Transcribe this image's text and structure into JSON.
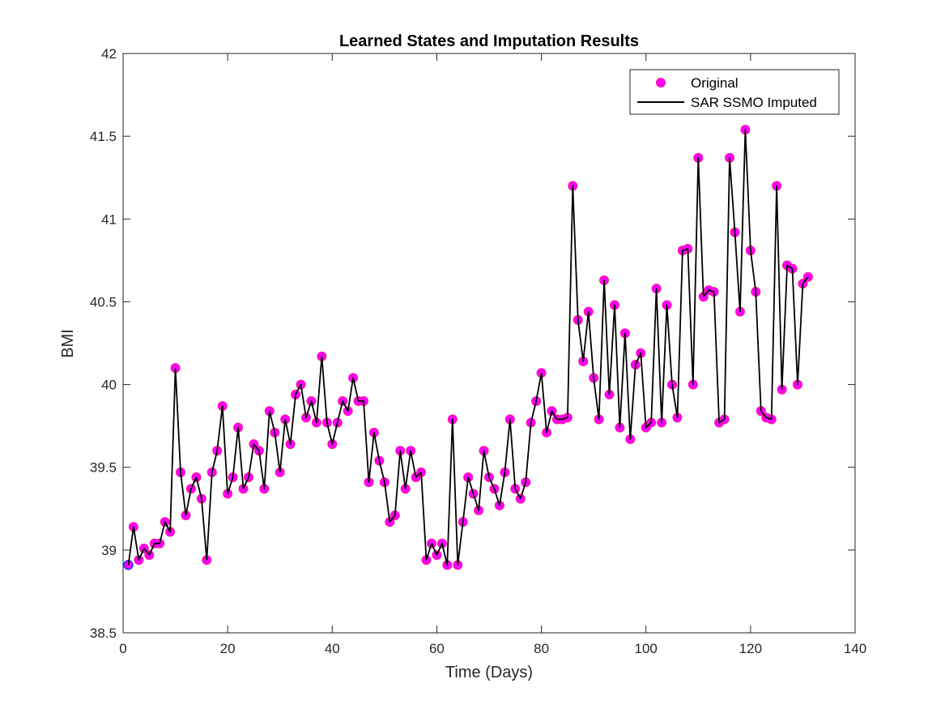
{
  "chart_data": {
    "type": "line",
    "title": "Learned States and Imputation Results",
    "xlabel": "Time (Days)",
    "ylabel": "BMI",
    "xlim": [
      0,
      140
    ],
    "ylim": [
      38.5,
      42
    ],
    "xticks": [
      "0",
      "20",
      "40",
      "60",
      "80",
      "100",
      "120",
      "140"
    ],
    "yticks": [
      "38.5",
      "39",
      "39.5",
      "40",
      "40.5",
      "41",
      "41.5",
      "42"
    ],
    "grid": false,
    "legend_position": "top-right",
    "legend": [
      "Original",
      "SAR SSMO Imputed"
    ],
    "colors": {
      "original_marker": "#ff00ff",
      "original_marker_edge": "#ff1493",
      "first_point": "#2b2bff",
      "imputed_line": "#000000",
      "axes": "#262626"
    },
    "x": [
      1,
      2,
      3,
      4,
      5,
      6,
      7,
      8,
      9,
      10,
      11,
      12,
      13,
      14,
      15,
      16,
      17,
      18,
      19,
      20,
      21,
      22,
      23,
      24,
      25,
      26,
      27,
      28,
      29,
      30,
      31,
      32,
      33,
      34,
      35,
      36,
      37,
      38,
      39,
      40,
      41,
      42,
      43,
      44,
      45,
      46,
      47,
      48,
      49,
      50,
      51,
      52,
      53,
      54,
      55,
      56,
      57,
      58,
      59,
      60,
      61,
      62,
      63,
      64,
      65,
      66,
      67,
      68,
      69,
      70,
      71,
      72,
      73,
      74,
      75,
      76,
      77,
      78,
      79,
      80,
      81,
      82,
      83,
      84,
      85,
      86,
      87,
      88,
      89,
      90,
      91,
      92,
      93,
      94,
      95,
      96,
      97,
      98,
      99,
      100,
      101,
      102,
      103,
      104,
      105,
      106,
      107,
      108,
      109,
      110,
      111,
      112,
      113,
      114,
      115,
      116,
      117,
      118,
      119,
      120,
      121,
      122,
      123,
      124,
      125,
      126,
      127,
      128,
      129,
      130,
      131
    ],
    "series": [
      {
        "name": "Original",
        "values": [
          38.91,
          39.14,
          38.94,
          39.01,
          38.97,
          39.04,
          39.04,
          39.17,
          39.11,
          40.1,
          39.47,
          39.21,
          39.37,
          39.44,
          39.31,
          38.94,
          39.47,
          39.6,
          39.87,
          39.34,
          39.44,
          39.74,
          39.37,
          39.44,
          39.64,
          39.6,
          39.37,
          39.84,
          39.71,
          39.47,
          39.79,
          39.64,
          39.94,
          40.0,
          39.8,
          39.9,
          39.77,
          40.17,
          39.77,
          39.64,
          39.77,
          39.9,
          39.84,
          40.04,
          39.9,
          39.9,
          39.41,
          39.71,
          39.54,
          39.41,
          39.17,
          39.21,
          39.6,
          39.37,
          39.6,
          39.44,
          39.47,
          38.94,
          39.04,
          38.97,
          39.04,
          38.91,
          39.79,
          38.91,
          39.17,
          39.44,
          39.34,
          39.24,
          39.6,
          39.44,
          39.37,
          39.27,
          39.47,
          39.79,
          39.37,
          39.31,
          39.41,
          39.77,
          39.9,
          40.07,
          39.71,
          39.84,
          39.79,
          39.79,
          39.8,
          41.2,
          40.39,
          40.14,
          40.44,
          40.04,
          39.79,
          40.63,
          39.94,
          40.48,
          39.74,
          40.31,
          39.67,
          40.12,
          40.19,
          39.74,
          39.77,
          40.58,
          39.77,
          40.48,
          40.0,
          39.8,
          40.81,
          40.82,
          40.0,
          41.37,
          40.53,
          40.57,
          40.56,
          39.77,
          39.79,
          41.37,
          40.92,
          40.44,
          41.54,
          40.81,
          40.56,
          39.84,
          39.8,
          39.79,
          41.2,
          39.97,
          40.72,
          40.7,
          40.0,
          40.61,
          40.65
        ]
      },
      {
        "name": "SAR SSMO Imputed",
        "values": [
          38.91,
          39.14,
          38.94,
          39.01,
          38.97,
          39.04,
          39.04,
          39.17,
          39.11,
          40.1,
          39.47,
          39.21,
          39.37,
          39.44,
          39.31,
          38.94,
          39.47,
          39.6,
          39.87,
          39.34,
          39.44,
          39.74,
          39.37,
          39.44,
          39.64,
          39.6,
          39.37,
          39.84,
          39.71,
          39.47,
          39.79,
          39.64,
          39.94,
          40.0,
          39.8,
          39.9,
          39.77,
          40.17,
          39.77,
          39.64,
          39.77,
          39.9,
          39.84,
          40.04,
          39.9,
          39.9,
          39.41,
          39.71,
          39.54,
          39.41,
          39.17,
          39.21,
          39.6,
          39.37,
          39.6,
          39.44,
          39.47,
          38.94,
          39.04,
          38.97,
          39.04,
          38.91,
          39.79,
          38.91,
          39.17,
          39.44,
          39.34,
          39.24,
          39.6,
          39.44,
          39.37,
          39.27,
          39.47,
          39.79,
          39.37,
          39.31,
          39.41,
          39.77,
          39.9,
          40.07,
          39.71,
          39.84,
          39.79,
          39.79,
          39.8,
          41.2,
          40.39,
          40.14,
          40.44,
          40.04,
          39.79,
          40.63,
          39.94,
          40.48,
          39.74,
          40.31,
          39.67,
          40.12,
          40.19,
          39.74,
          39.77,
          40.58,
          39.77,
          40.48,
          40.0,
          39.8,
          40.81,
          40.82,
          40.0,
          41.37,
          40.53,
          40.57,
          40.56,
          39.77,
          39.79,
          41.37,
          40.92,
          40.44,
          41.54,
          40.81,
          40.56,
          39.84,
          39.8,
          39.79,
          41.2,
          39.97,
          40.72,
          40.7,
          40.0,
          40.61,
          40.65
        ]
      }
    ]
  }
}
